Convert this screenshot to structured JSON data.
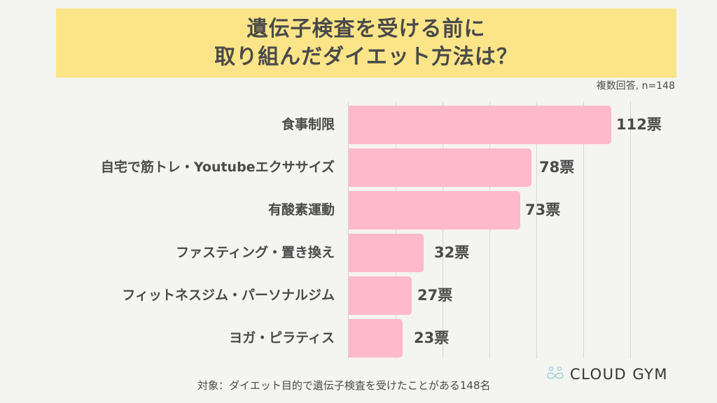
{
  "title": {
    "line1": "遺伝子検査を受ける前に",
    "line2": "取り組んだダイエット方法は？"
  },
  "note": "複数回答, n=148",
  "footer": "対象：ダイエット目的で遺伝子検査を受けたことがある148名",
  "logo": {
    "text": "CLOUD GYM",
    "icon": "infinity-cloud-icon"
  },
  "colors": {
    "background": "#f4f4f0",
    "banner": "#fce589",
    "bar": "#feb9cb",
    "text": "#4a4a4a",
    "gridline": "#d6d6d2",
    "logo_icon": "#9fd3dd"
  },
  "rows": [
    {
      "label": "食事制限",
      "value_label": "112票"
    },
    {
      "label": "自宅で筋トレ・Youtubeエクササイズ",
      "value_label": "78票"
    },
    {
      "label": "有酸素運動",
      "value_label": "73票"
    },
    {
      "label": "ファスティング・置き換え",
      "value_label": "32票"
    },
    {
      "label": "フィットネスジム・パーソナルジム",
      "value_label": "27票"
    },
    {
      "label": "ヨガ・ピラティス",
      "value_label": "23票"
    }
  ],
  "chart_data": {
    "type": "bar",
    "orientation": "horizontal",
    "title": "遺伝子検査を受ける前に取り組んだダイエット方法は？",
    "subtitle": "複数回答, n=148",
    "categories": [
      "食事制限",
      "自宅で筋トレ・Youtubeエクササイズ",
      "有酸素運動",
      "ファスティング・置き換え",
      "フィットネスジム・パーソナルジム",
      "ヨガ・ピラティス"
    ],
    "values": [
      112,
      78,
      73,
      32,
      27,
      23
    ],
    "unit": "票",
    "xlabel": "",
    "ylabel": "",
    "xlim": [
      0,
      120
    ],
    "grid": true,
    "grid_step": 20,
    "legend": null,
    "annotation": "対象：ダイエット目的で遺伝子検査を受けたことがある148名"
  }
}
